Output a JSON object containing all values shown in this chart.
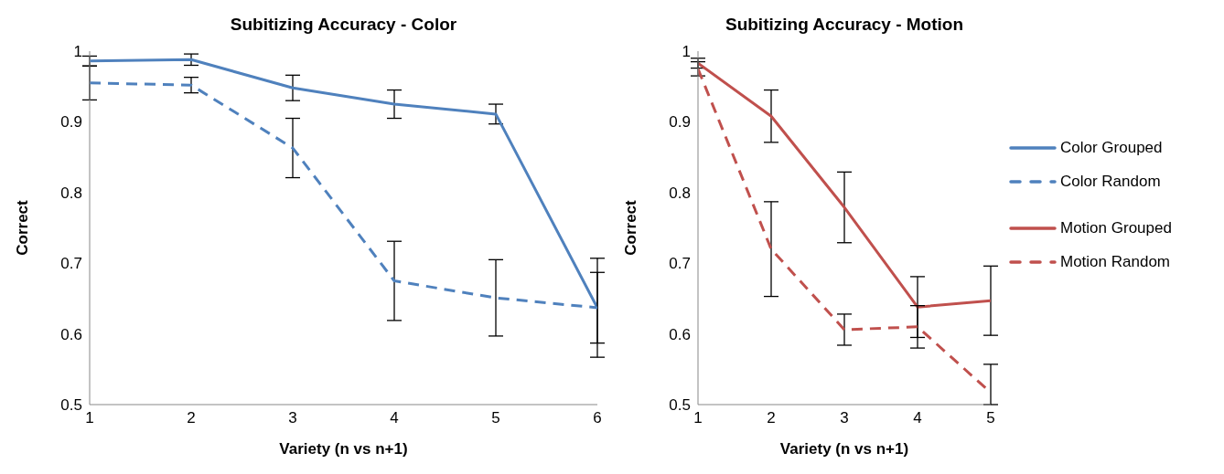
{
  "chart_data": [
    {
      "type": "line",
      "title": "Subitizing Accuracy - Color",
      "xlabel": "Variety (n vs n+1)",
      "ylabel": "Correct",
      "x": [
        1,
        2,
        3,
        4,
        5,
        6
      ],
      "xlim": [
        1,
        6
      ],
      "xticks": [
        1,
        2,
        3,
        4,
        5,
        6
      ],
      "ylim": [
        0.5,
        1
      ],
      "yticks": [
        0.5,
        0.6,
        0.7,
        0.8,
        0.9,
        1
      ],
      "grid": false,
      "legend": "right",
      "marker": "none",
      "series": [
        {
          "name": "Color Grouped",
          "color": "#4f81bd",
          "line_style": "solid",
          "values": [
            0.986,
            0.988,
            0.948,
            0.925,
            0.911,
            0.637
          ],
          "errors": [
            0.007,
            0.008,
            0.018,
            0.02,
            0.014,
            0.05
          ]
        },
        {
          "name": "Color Random",
          "color": "#4f81bd",
          "line_style": "dashed",
          "values": [
            0.955,
            0.952,
            0.863,
            0.675,
            0.651,
            0.637
          ],
          "errors": [
            0.024,
            0.011,
            0.042,
            0.056,
            0.054,
            0.07
          ]
        }
      ]
    },
    {
      "type": "line",
      "title": "Subitizing Accuracy - Motion",
      "xlabel": "Variety (n vs n+1)",
      "ylabel": "Correct",
      "x": [
        1,
        2,
        3,
        4,
        5
      ],
      "xlim": [
        1,
        5
      ],
      "xticks": [
        1,
        2,
        3,
        4,
        5
      ],
      "ylim": [
        0.5,
        1
      ],
      "yticks": [
        0.5,
        0.6,
        0.7,
        0.8,
        0.9,
        1
      ],
      "grid": false,
      "legend": "right",
      "marker": "none",
      "series": [
        {
          "name": "Motion Grouped",
          "color": "#c0504d",
          "line_style": "solid",
          "values": [
            0.983,
            0.908,
            0.779,
            0.638,
            0.647
          ],
          "errors": [
            0.007,
            0.037,
            0.05,
            0.043,
            0.049
          ]
        },
        {
          "name": "Motion Random",
          "color": "#c0504d",
          "line_style": "dashed",
          "values": [
            0.975,
            0.72,
            0.606,
            0.61,
            0.517
          ],
          "errors": [
            0.01,
            0.067,
            0.022,
            0.03,
            [
              0.5,
              0.557
            ]
          ]
        }
      ]
    }
  ]
}
